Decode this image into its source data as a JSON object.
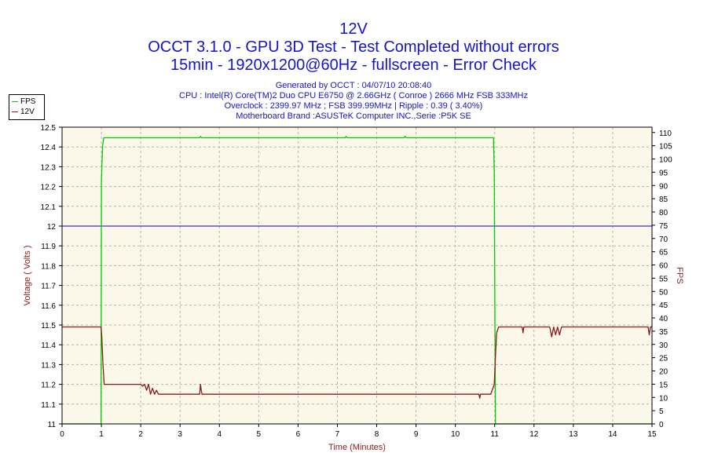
{
  "header": {
    "title": "12V",
    "line2": "OCCT 3.1.0 - GPU 3D Test - Test Completed without errors",
    "line3": "15min - 1920x1200@60Hz - fullscreen - Error Check"
  },
  "info": {
    "generated": "Generated by OCCT : 04/07/10 20:08:40",
    "cpu": "CPU : Intel(R) Core(TM)2 Duo CPU E6750 @ 2.66GHz ( Conroe ) 2666 MHz FSB 333MHz",
    "overclock": "Overclock : 2399.97 MHz ; FSB 399.99MHz | Ripple : 0.39 ( 3.40%)",
    "motherboard": "Motherboard Brand :ASUSTeK Computer INC.,Serie :P5K SE"
  },
  "legend": {
    "fps_label": "FPS",
    "v12_label": "12V"
  },
  "colors": {
    "fps": "#00cc00",
    "v12": "#8b1a1a",
    "reference": "#0000c8",
    "plot_bg": "#fbf8e9",
    "grid": "#b4b4b4",
    "title": "#1414c8"
  },
  "chart_data": {
    "type": "line",
    "xlabel": "Time (Minutes)",
    "ylabel_left": "Voltage ( Volts )",
    "ylabel_right": "FPS",
    "xlim": [
      0,
      15
    ],
    "ylim_left": [
      11,
      12.5
    ],
    "ylim_right": [
      0,
      112
    ],
    "x_ticks": [
      "0",
      "1",
      "2",
      "3",
      "4",
      "5",
      "6",
      "7",
      "8",
      "9",
      "10",
      "11",
      "12",
      "13",
      "14",
      "15"
    ],
    "y_left_ticks": [
      "11",
      "11.1",
      "11.2",
      "11.3",
      "11.4",
      "11.5",
      "11.6",
      "11.7",
      "11.8",
      "11.9",
      "12",
      "12.1",
      "12.2",
      "12.3",
      "12.4",
      "12.5"
    ],
    "y_right_ticks": [
      "0",
      "5",
      "10",
      "15",
      "20",
      "25",
      "30",
      "35",
      "40",
      "45",
      "50",
      "55",
      "60",
      "65",
      "70",
      "75",
      "80",
      "85",
      "90",
      "95",
      "100",
      "105",
      "110"
    ],
    "grid": true,
    "reference_line": {
      "axis": "left",
      "value": 12
    },
    "series": [
      {
        "name": "FPS",
        "axis": "right",
        "x": [
          0,
          0.99,
          1.0,
          1.03,
          1.06,
          3.5,
          3.52,
          3.55,
          7.2,
          7.22,
          7.25,
          8.7,
          8.72,
          8.75,
          10.97,
          10.99,
          11.0,
          11.02,
          15
        ],
        "values": [
          0,
          0,
          92,
          105,
          108,
          108,
          108.5,
          108,
          108,
          108.5,
          108,
          108,
          108.6,
          108,
          108,
          95,
          60,
          0,
          0
        ]
      },
      {
        "name": "12V",
        "axis": "left",
        "x": [
          0,
          0.99,
          1.01,
          1.04,
          1.07,
          2.0,
          2.05,
          2.1,
          2.15,
          2.2,
          2.25,
          2.3,
          2.35,
          2.4,
          2.45,
          2.5,
          3.5,
          3.52,
          3.54,
          3.56,
          10.6,
          10.62,
          10.64,
          10.9,
          10.99,
          11.02,
          11.05,
          11.1,
          11.7,
          11.72,
          11.74,
          12.4,
          12.45,
          12.5,
          12.55,
          12.6,
          12.65,
          12.7,
          14.9,
          14.93,
          14.96,
          15
        ],
        "values": [
          11.49,
          11.49,
          11.44,
          11.3,
          11.2,
          11.2,
          11.19,
          11.2,
          11.17,
          11.2,
          11.15,
          11.18,
          11.15,
          11.17,
          11.15,
          11.15,
          11.15,
          11.2,
          11.17,
          11.15,
          11.15,
          11.13,
          11.15,
          11.15,
          11.2,
          11.34,
          11.46,
          11.49,
          11.49,
          11.46,
          11.49,
          11.49,
          11.44,
          11.49,
          11.45,
          11.49,
          11.45,
          11.49,
          11.49,
          11.45,
          11.49,
          11.49
        ]
      }
    ]
  }
}
